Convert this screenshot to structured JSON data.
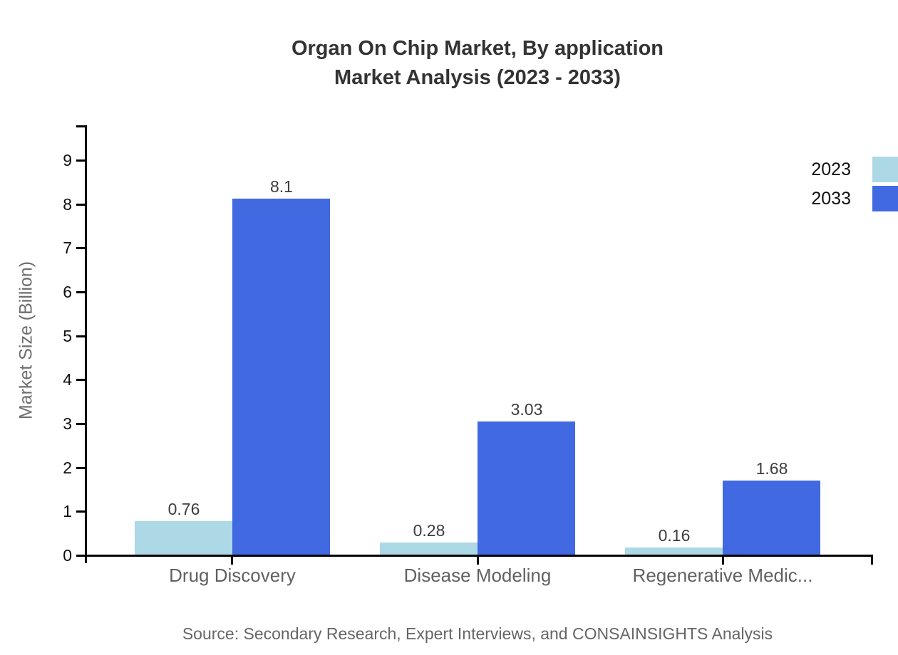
{
  "title": {
    "line1": "Organ On Chip Market, By application",
    "line2": "Market Analysis (2023 - 2033)"
  },
  "source": "Source: Secondary Research, Expert Interviews, and CONSAINSIGHTS Analysis",
  "legend": {
    "position": "top-right",
    "items": [
      {
        "label": "2023",
        "color": "#ADD8E6"
      },
      {
        "label": "2033",
        "color": "#4169E1"
      }
    ]
  },
  "colors": {
    "series_2023": "#ADD8E6",
    "series_2033": "#4169E1",
    "axis": "#000000",
    "title_text": "#333333",
    "category_text": "#616161",
    "value_label_text": "#3c3c3c",
    "background": "#ffffff"
  },
  "chart_data": {
    "type": "bar",
    "title": "Organ On Chip Market, By application Market Analysis (2023 - 2033)",
    "categories": [
      "Drug Discovery",
      "Disease Modeling",
      "Regenerative Medic..."
    ],
    "series": [
      {
        "name": "2023",
        "color": "#ADD8E6",
        "values": [
          0.76,
          0.28,
          0.16
        ]
      },
      {
        "name": "2033",
        "color": "#4169E1",
        "values": [
          8.1,
          3.03,
          1.68
        ]
      }
    ],
    "bar_value_labels": {
      "2023": [
        "0.76",
        "0.28",
        "0.16"
      ],
      "2033": [
        "8.1",
        "3.03",
        "1.68"
      ]
    },
    "xlabel": "",
    "ylabel": "Market Size (Billion)",
    "yticks": [
      0,
      1,
      2,
      3,
      4,
      5,
      6,
      7,
      8,
      9
    ],
    "ylim": [
      0,
      9.8
    ],
    "grid": false,
    "legend_position": "top-right"
  }
}
